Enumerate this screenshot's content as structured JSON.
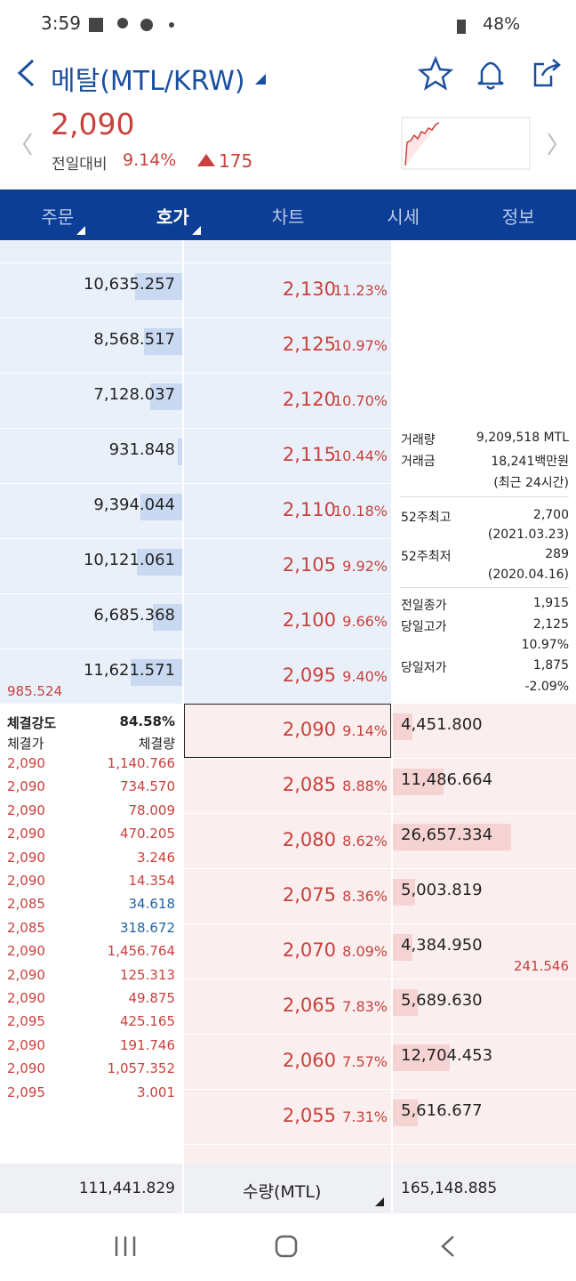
{
  "status_bar": {
    "time": "3:59",
    "battery": "48%"
  },
  "header": {
    "title": "메탈(MTL/KRW)",
    "price": "2,090",
    "change_label": "전일대비",
    "change_pct": "9.14%",
    "change_amount": "175"
  },
  "tabs": [
    "주문",
    "호가",
    "차트",
    "시세",
    "정보"
  ],
  "asks": [
    {
      "quantity": "10,635.257",
      "price": "2,130",
      "pct": "11.23%"
    },
    {
      "quantity": "8,568.517",
      "price": "2,125",
      "pct": "10.97%"
    },
    {
      "quantity": "7,128.037",
      "price": "2,120",
      "pct": "10.70%"
    },
    {
      "quantity": "931.848",
      "price": "2,115",
      "pct": "10.44%"
    },
    {
      "quantity": "9,394.044",
      "price": "2,110",
      "pct": "10.18%"
    },
    {
      "quantity": "10,121.061",
      "price": "2,105",
      "pct": "9.92%"
    },
    {
      "quantity": "6,685.368",
      "price": "2,100",
      "pct": "9.66%"
    },
    {
      "quantity": "11,621.571",
      "price": "2,095",
      "pct": "9.40%"
    }
  ],
  "bids": [
    {
      "quantity": "4,451.800",
      "price": "2,090",
      "pct": "9.14%"
    },
    {
      "quantity": "11,486.664",
      "price": "2,085",
      "pct": "8.88%"
    },
    {
      "quantity": "26,657.334",
      "price": "2,080",
      "pct": "8.62%"
    },
    {
      "quantity": "5,003.819",
      "price": "2,075",
      "pct": "8.36%"
    },
    {
      "quantity": "4,384.950",
      "price": "2,070",
      "pct": "8.09%"
    },
    {
      "quantity": "5,689.630",
      "price": "2,065",
      "pct": "7.83%"
    },
    {
      "quantity": "12,704.453",
      "price": "2,060",
      "pct": "7.57%"
    },
    {
      "quantity": "5,616.677",
      "price": "2,055",
      "pct": "7.31%"
    }
  ],
  "ask_extra": "985.524",
  "bid_extra": "241.546",
  "market_info": {
    "volume_label": "거래량",
    "volume": "9,209,518 MTL",
    "amount_label": "거래금",
    "amount": "18,241백만원",
    "period": "(최근 24시간)",
    "high52_label": "52주최고",
    "high52": "2,700",
    "high52_date": "(2021.03.23)",
    "low52_label": "52주최저",
    "low52": "289",
    "low52_date": "(2020.04.16)",
    "prev_close_label": "전일종가",
    "prev_close": "1,915",
    "day_high_label": "당일고가",
    "day_high": "2,125",
    "day_high_pct": "10.97%",
    "day_low_label": "당일저가",
    "day_low": "1,875",
    "day_low_pct": "-2.09%"
  },
  "trade_strength": {
    "label": "체결강도",
    "value": "84.58%",
    "price_header": "체결가",
    "volume_header": "체결량",
    "trades": [
      {
        "price": "2,090",
        "volume": "1,140.766",
        "color": "#c8413c"
      },
      {
        "price": "2,090",
        "volume": "734.570",
        "color": "#c8413c"
      },
      {
        "price": "2,090",
        "volume": "78.009",
        "color": "#c8413c"
      },
      {
        "price": "2,090",
        "volume": "470.205",
        "color": "#c8413c"
      },
      {
        "price": "2,090",
        "volume": "3.246",
        "color": "#c8413c"
      },
      {
        "price": "2,090",
        "volume": "14.354",
        "color": "#c8413c"
      },
      {
        "price": "2,085",
        "volume": "34.618",
        "color": "#1f63a8"
      },
      {
        "price": "2,085",
        "volume": "318.672",
        "color": "#1f63a8"
      },
      {
        "price": "2,090",
        "volume": "1,456.764",
        "color": "#c8413c"
      },
      {
        "price": "2,090",
        "volume": "125.313",
        "color": "#c8413c"
      },
      {
        "price": "2,090",
        "volume": "49.875",
        "color": "#c8413c"
      },
      {
        "price": "2,095",
        "volume": "425.165",
        "color": "#c8413c"
      },
      {
        "price": "2,090",
        "volume": "191.746",
        "color": "#c8413c"
      },
      {
        "price": "2,090",
        "volume": "1,057.352",
        "color": "#c8413c"
      },
      {
        "price": "2,095",
        "volume": "3.001",
        "color": "#c8413c"
      }
    ]
  },
  "footer": {
    "ask_total": "111,441.829",
    "unit": "수량(MTL)",
    "bid_total": "165,148.885"
  }
}
